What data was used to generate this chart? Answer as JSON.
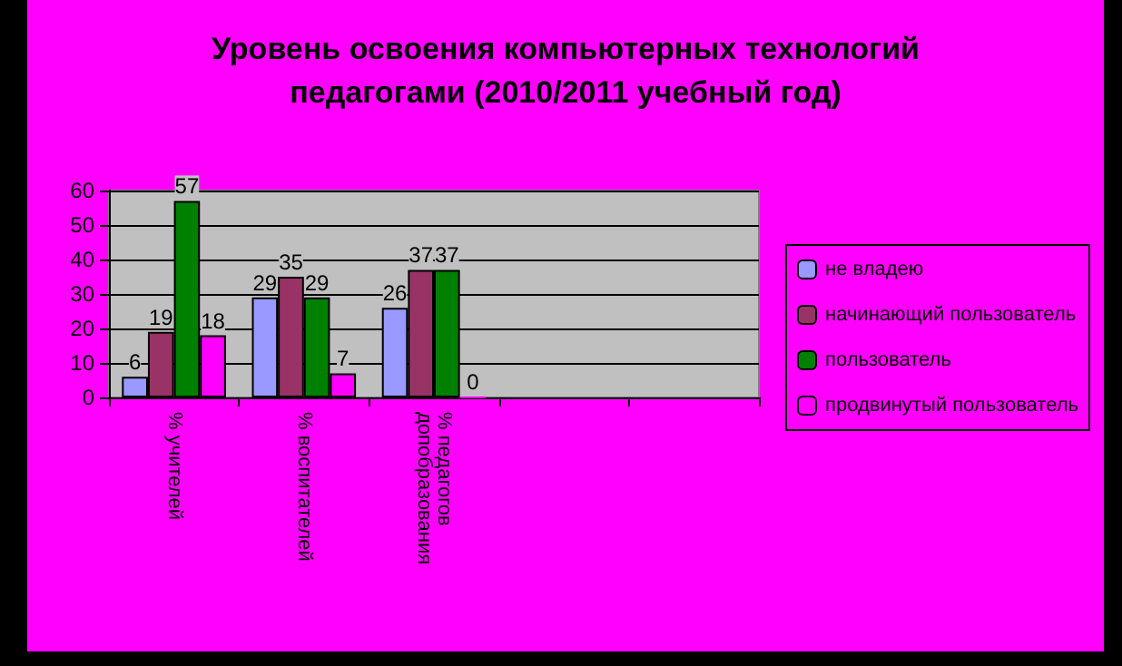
{
  "chart_data": {
    "type": "bar",
    "title": "Уровень освоения компьютерных технологий\nпедагогами (2010/2011 учебный год)",
    "categories": [
      "% учителей",
      "% воспитателей",
      "% педагогов\nдопобразования",
      null,
      null
    ],
    "series": [
      {
        "name": "не владею",
        "color": "#9999ff",
        "values": [
          6,
          29,
          26,
          null,
          null
        ]
      },
      {
        "name": "начинающий пользователь",
        "color": "#993366",
        "values": [
          19,
          35,
          37,
          null,
          null
        ]
      },
      {
        "name": "пользователь",
        "color": "#008000",
        "values": [
          57,
          29,
          37,
          null,
          null
        ]
      },
      {
        "name": "продвинутый пользователь",
        "color": "#ff00ff",
        "values": [
          18,
          7,
          0,
          null,
          null
        ]
      }
    ],
    "ylim": [
      0,
      60
    ],
    "yticks": [
      0,
      10,
      20,
      30,
      40,
      50,
      60
    ],
    "grid": "y",
    "legend": "right",
    "data_labels": true
  }
}
